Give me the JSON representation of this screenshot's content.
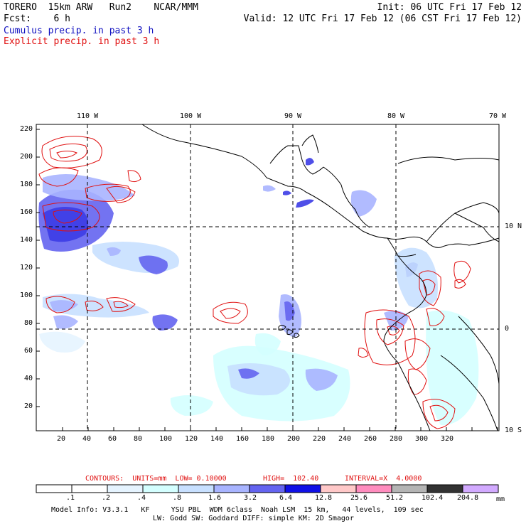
{
  "header": {
    "model": "TORERO  15km ARW   Run2    NCAR/MMM",
    "forecast": "Fcst:    6 h",
    "init": "Init: 06 UTC Fri 17 Feb 12",
    "valid": "Valid: 12 UTC Fri 17 Feb 12 (06 CST Fri 17 Feb 12)",
    "cumulus_label": "Cumulus precip. in past 3 h",
    "explicit_label": "Explicit precip. in past 3 h"
  },
  "map": {
    "top_lon_labels": [
      "110 W",
      "100 W",
      "90 W",
      "80 W",
      "70 W"
    ],
    "right_lat_labels": [
      "10 N",
      "0",
      "10 S"
    ],
    "y_ticks": [
      "220",
      "200",
      "180",
      "160",
      "140",
      "120",
      "100",
      "80",
      "60",
      "40",
      "20"
    ],
    "x_ticks": [
      "20",
      "40",
      "60",
      "80",
      "100",
      "120",
      "140",
      "160",
      "180",
      "200",
      "220",
      "240",
      "260",
      "280",
      "300",
      "320"
    ]
  },
  "contours_line": {
    "contours": "CONTOURS:  UNITS=mm  LOW= 0.10000",
    "high": "HIGH=  102.40",
    "interval": "INTERVAL=X  4.0000"
  },
  "colorbar": {
    "labels": [
      ".1",
      ".2",
      ".4",
      ".8",
      "1.6",
      "3.2",
      "6.4",
      "12.8",
      "25.6",
      "51.2",
      "102.4",
      "204.8"
    ],
    "unit": "mm",
    "colors": [
      "#ffffff",
      "#ffffff",
      "#e6f4ff",
      "#d4ffff",
      "#c8e0ff",
      "#a8b4ff",
      "#6464f0",
      "#1010e6",
      "#ffc8c8",
      "#ff8cbe",
      "#b4b4b4",
      "#323232",
      "#d2aaff"
    ]
  },
  "footer": {
    "line1": "Model Info: V3.3.1   KF     YSU PBL  WDM 6class  Noah LSM  15 km,   44 levels,  109 sec",
    "line2": "LW: Godd SW: Goddard DIFF: simple KM: 2D Smagor"
  }
}
